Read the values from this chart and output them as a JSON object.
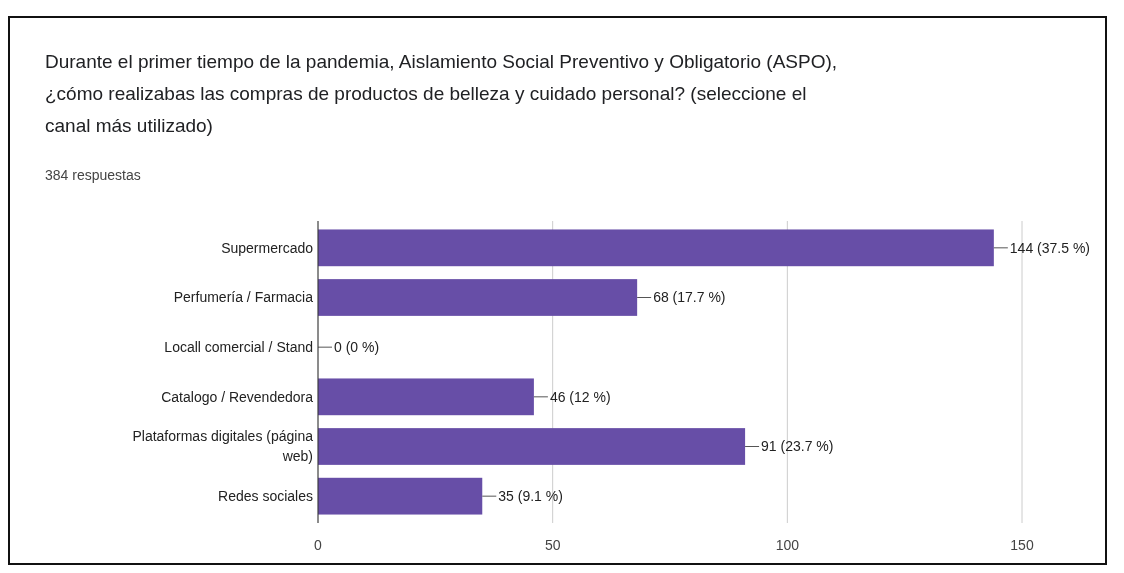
{
  "chart_data": {
    "type": "bar",
    "orientation": "horizontal",
    "title": "Durante el primer tiempo de la pandemia, Aislamiento Social Preventivo y Obligatorio (ASPO), ¿cómo realizabas las compras de productos de belleza y cuidado personal? (seleccione el canal más utilizado)",
    "subtitle": "384 respuestas",
    "categories": [
      "Supermercado",
      "Perfumería / Farmacia",
      "Locall comercial / Stand",
      "Catalogo / Revendedora",
      "Plataformas digitales (página web)",
      "Redes sociales"
    ],
    "values": [
      144,
      68,
      0,
      46,
      91,
      35
    ],
    "value_labels": [
      "144 (37.5 %)",
      "68 (17.7 %)",
      "0 (0 %)",
      "46 (12 %)",
      "91 (23.7 %)",
      "35 (9.1 %)"
    ],
    "color": "#674ea7",
    "xlim": [
      0,
      150
    ],
    "xticks": [
      0,
      50,
      100,
      150
    ],
    "grid": "x"
  }
}
